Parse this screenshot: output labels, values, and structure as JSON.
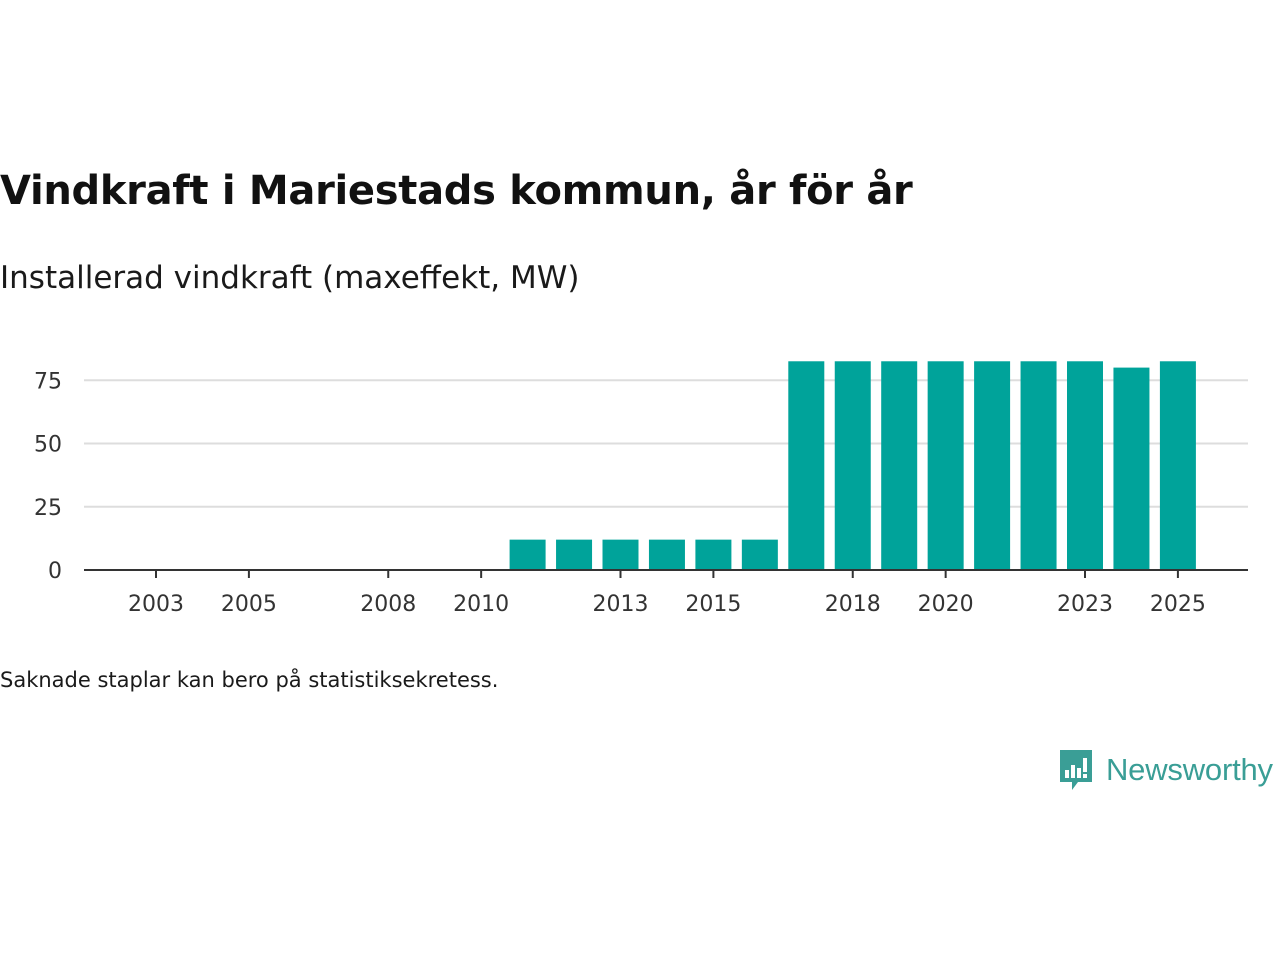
{
  "title": "Vindkraft i Mariestads kommun, år för år",
  "subtitle": "Installerad vindkraft (maxeffekt, MW)",
  "note": "Saknade staplar kan bero på statistiksekretess.",
  "brand": {
    "name": "Newsworthy",
    "color": "#3a9e96"
  },
  "colors": {
    "bar": "#00a39a",
    "grid": "#dddddd",
    "axis": "#333333"
  },
  "chart_data": {
    "type": "bar",
    "title": "Vindkraft i Mariestads kommun, år för år",
    "ylabel": "Installerad vindkraft (maxeffekt, MW)",
    "xlabel": "",
    "categories": [
      2003,
      2004,
      2005,
      2006,
      2007,
      2008,
      2009,
      2010,
      2011,
      2012,
      2013,
      2014,
      2015,
      2016,
      2017,
      2018,
      2019,
      2020,
      2021,
      2022,
      2023,
      2024,
      2025
    ],
    "values": [
      0,
      0,
      0,
      0,
      0,
      0,
      0,
      0,
      12,
      12,
      12,
      12,
      12,
      12,
      82.5,
      82.5,
      82.5,
      82.5,
      82.5,
      82.5,
      82.5,
      80,
      82.5
    ],
    "x_tick_labels": [
      "2003",
      "2005",
      "2008",
      "2010",
      "2013",
      "2015",
      "2018",
      "2020",
      "2023",
      "2025"
    ],
    "y_ticks": [
      0,
      25,
      50,
      75
    ],
    "ylim": [
      0,
      82.5
    ],
    "grid": true
  }
}
